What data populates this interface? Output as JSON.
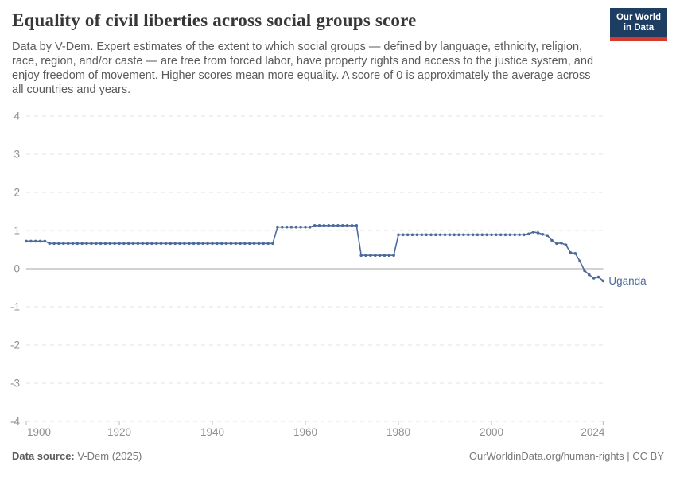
{
  "header": {
    "title": "Equality of civil liberties across social groups score",
    "subtitle": "Data by V-Dem. Expert estimates of the extent to which social groups — defined by language, ethnicity, religion, race, region, and/or caste — are free from forced labor, have property rights and access to the justice system, and enjoy freedom of movement. Higher scores mean more equality. A score of 0 is approximately the average across all countries and years.",
    "logo_line1": "Our World",
    "logo_line2": "in Data",
    "logo_bg": "#1d3d63",
    "logo_accent": "#d7382e"
  },
  "footer": {
    "source_label": "Data source:",
    "source_value": "V-Dem (2025)",
    "license": "OurWorldinData.org/human-rights | CC BY"
  },
  "chart_data": {
    "type": "line",
    "series_name": "Uganda",
    "year_start": 1900,
    "year_end": 2024,
    "ylim": [
      -4,
      4
    ],
    "y_ticks": [
      4,
      3,
      2,
      1,
      0,
      -1,
      -2,
      -3,
      -4
    ],
    "x_ticks": [
      1900,
      1920,
      1940,
      1960,
      1980,
      2000,
      2024
    ],
    "grid": "dashed horizontal lines, solid zero line",
    "legend_position": "end-of-line label",
    "colors": {
      "line": "#4c6a9c",
      "gridline": "#e3e3e3",
      "zero_line": "#a5a5a5",
      "axis_text": "#8f8f8f",
      "tick": "#bbbbbb"
    },
    "values": [
      0.72,
      0.72,
      0.72,
      0.72,
      0.72,
      0.66,
      0.66,
      0.66,
      0.66,
      0.66,
      0.66,
      0.66,
      0.66,
      0.66,
      0.66,
      0.66,
      0.66,
      0.66,
      0.66,
      0.66,
      0.66,
      0.66,
      0.66,
      0.66,
      0.66,
      0.66,
      0.66,
      0.66,
      0.66,
      0.66,
      0.66,
      0.66,
      0.66,
      0.66,
      0.66,
      0.66,
      0.66,
      0.66,
      0.66,
      0.66,
      0.66,
      0.66,
      0.66,
      0.66,
      0.66,
      0.66,
      0.66,
      0.66,
      0.66,
      0.66,
      0.66,
      0.66,
      0.66,
      0.66,
      1.09,
      1.09,
      1.09,
      1.09,
      1.09,
      1.09,
      1.09,
      1.09,
      1.13,
      1.13,
      1.13,
      1.13,
      1.13,
      1.13,
      1.13,
      1.13,
      1.13,
      1.13,
      0.35,
      0.35,
      0.35,
      0.35,
      0.35,
      0.35,
      0.35,
      0.35,
      0.89,
      0.89,
      0.89,
      0.89,
      0.89,
      0.89,
      0.89,
      0.89,
      0.89,
      0.89,
      0.89,
      0.89,
      0.89,
      0.89,
      0.89,
      0.89,
      0.89,
      0.89,
      0.89,
      0.89,
      0.89,
      0.89,
      0.89,
      0.89,
      0.89,
      0.89,
      0.89,
      0.89,
      0.91,
      0.96,
      0.94,
      0.9,
      0.87,
      0.74,
      0.66,
      0.67,
      0.62,
      0.42,
      0.4,
      0.2,
      -0.05,
      -0.16,
      -0.25,
      -0.22,
      -0.32
    ]
  }
}
